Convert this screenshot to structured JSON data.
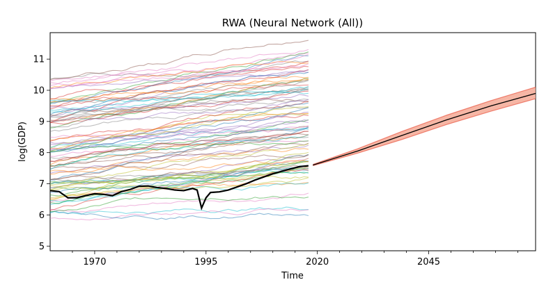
{
  "chart_data": {
    "type": "line",
    "title": "RWA (Neural Network (All))",
    "xlabel": "Time",
    "ylabel": "log(GDP)",
    "xlim": [
      1960,
      2069
    ],
    "ylim": [
      4.85,
      11.85
    ],
    "x_ticks": [
      1970,
      1995,
      2020,
      2045
    ],
    "x_tick_labels": [
      "1970",
      "1995",
      "2020",
      "2045"
    ],
    "y_ticks": [
      5,
      6,
      7,
      8,
      9,
      10,
      11
    ],
    "y_tick_labels": [
      "5",
      "6",
      "7",
      "8",
      "9",
      "10",
      "11"
    ],
    "grid": false,
    "background_series": {
      "description_range": [
        5.3,
        11.5
      ],
      "x_range": [
        1960,
        2018
      ],
      "count": 90
    },
    "highlight_series": {
      "name": "RWA",
      "color": "#000000",
      "x": [
        1960,
        1962,
        1964,
        1966,
        1968,
        1970,
        1972,
        1974,
        1976,
        1978,
        1980,
        1982,
        1984,
        1986,
        1988,
        1990,
        1992,
        1993,
        1994,
        1995,
        1996,
        1998,
        2000,
        2002,
        2004,
        2006,
        2008,
        2010,
        2012,
        2014,
        2016,
        2018
      ],
      "y": [
        6.78,
        6.75,
        6.55,
        6.55,
        6.62,
        6.68,
        6.66,
        6.62,
        6.75,
        6.82,
        6.92,
        6.93,
        6.88,
        6.85,
        6.8,
        6.78,
        6.85,
        6.8,
        6.22,
        6.55,
        6.72,
        6.74,
        6.8,
        6.9,
        7.0,
        7.12,
        7.22,
        7.32,
        7.4,
        7.48,
        7.55,
        7.58
      ]
    },
    "forecast": {
      "color": "#e8402a",
      "band_color": "#f4a48f",
      "x": [
        2019,
        2029,
        2039,
        2049,
        2059,
        2069
      ],
      "mean": [
        7.6,
        8.05,
        8.55,
        9.05,
        9.5,
        9.9
      ],
      "lower": [
        7.58,
        7.98,
        8.42,
        8.9,
        9.33,
        9.73
      ],
      "upper": [
        7.62,
        8.12,
        8.68,
        9.2,
        9.67,
        10.1
      ]
    }
  }
}
